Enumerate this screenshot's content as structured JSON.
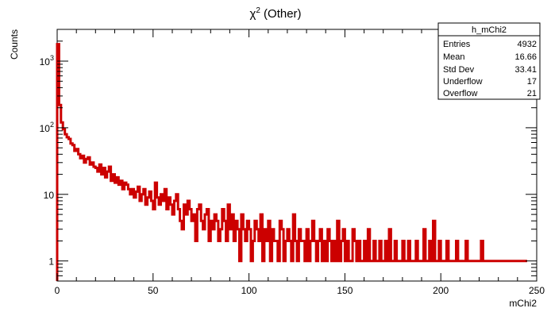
{
  "chart_data": {
    "type": "histogram",
    "title_symbol": "χ",
    "title_sup": "2",
    "title_rest": " (Other)",
    "xlabel": "mChi2",
    "ylabel": "Counts",
    "xlim": [
      0,
      250
    ],
    "ylim": [
      0.5,
      3000
    ],
    "log_y": true,
    "grid": false,
    "bin_width": 1,
    "line_color": "#cc0000",
    "x_ticks": [
      {
        "v": 0,
        "label": "0"
      },
      {
        "v": 50,
        "label": "50"
      },
      {
        "v": 100,
        "label": "100"
      },
      {
        "v": 150,
        "label": "150"
      },
      {
        "v": 200,
        "label": "200"
      },
      {
        "v": 250,
        "label": "250"
      }
    ],
    "y_ticks": [
      {
        "v": 1,
        "base": "1",
        "exp": ""
      },
      {
        "v": 10,
        "base": "10",
        "exp": ""
      },
      {
        "v": 100,
        "base": "10",
        "exp": "2"
      },
      {
        "v": 1000,
        "base": "10",
        "exp": "3"
      }
    ],
    "values": [
      1800,
      220,
      120,
      95,
      80,
      72,
      68,
      58,
      55,
      45,
      48,
      40,
      35,
      38,
      30,
      34,
      36,
      28,
      30,
      26,
      25,
      22,
      28,
      20,
      25,
      18,
      22,
      26,
      16,
      20,
      15,
      18,
      14,
      16,
      12,
      15,
      14,
      12,
      10,
      12,
      9,
      11,
      13,
      8,
      10,
      12,
      7,
      9,
      11,
      8,
      6,
      15,
      9,
      7,
      10,
      8,
      12,
      6,
      9,
      7,
      5,
      8,
      10,
      6,
      4,
      3,
      7,
      5,
      8,
      6,
      4,
      5,
      2,
      6,
      7,
      4,
      3,
      5,
      6,
      2,
      4,
      3,
      5,
      4,
      2,
      3,
      6,
      4,
      2,
      7,
      3,
      5,
      2,
      4,
      3,
      1,
      5,
      3,
      2,
      4,
      3,
      1,
      2,
      4,
      3,
      2,
      5,
      1,
      3,
      2,
      4,
      1,
      3,
      2,
      2,
      1,
      4,
      3,
      1,
      2,
      3,
      2,
      1,
      5,
      2,
      1,
      3,
      2,
      2,
      1,
      3,
      1,
      2,
      4,
      2,
      1,
      2,
      3,
      1,
      2,
      1,
      3,
      2,
      1,
      2,
      1,
      4,
      1,
      2,
      3,
      1,
      2,
      1,
      1,
      3,
      2,
      1,
      2,
      1,
      1,
      2,
      1,
      3,
      1,
      1,
      2,
      1,
      1,
      2,
      1,
      1,
      2,
      1,
      3,
      1,
      1,
      2,
      1,
      1,
      1,
      2,
      1,
      1,
      2,
      1,
      1,
      1,
      2,
      1,
      1,
      1,
      3,
      1,
      1,
      2,
      1,
      4,
      1,
      1,
      2,
      1,
      1,
      1,
      2,
      1,
      1,
      1,
      1,
      2,
      1,
      1,
      1,
      1,
      2,
      1,
      1,
      1,
      1,
      1,
      1,
      1,
      2,
      1,
      1,
      1,
      1,
      1,
      1,
      1,
      1,
      1,
      1,
      1,
      1,
      1,
      1,
      1,
      1,
      1,
      1,
      1,
      1,
      1,
      1,
      1
    ],
    "stats": {
      "name": "h_mChi2",
      "rows": [
        {
          "label": "Entries",
          "value": "4932"
        },
        {
          "label": "Mean",
          "value": "16.66"
        },
        {
          "label": "Std Dev",
          "value": "33.41"
        },
        {
          "label": "Underflow",
          "value": "17"
        },
        {
          "label": "Overflow",
          "value": "21"
        }
      ]
    }
  }
}
